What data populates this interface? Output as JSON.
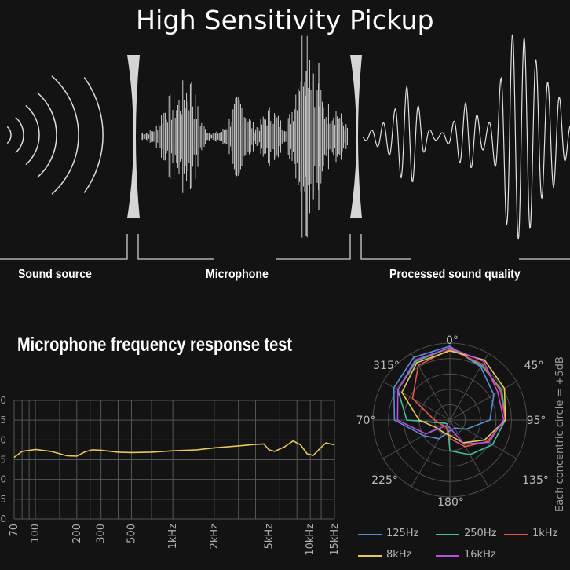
{
  "title": "High Sensitivity Pickup",
  "stages": {
    "sound_source": "Sound source",
    "microphone": "Microphone",
    "processed": "Processed sound quality"
  },
  "chart_heading": "Microphone frequency response test",
  "side_note": "Each concentric circle = +5dB",
  "colors": {
    "background": "#131313",
    "grid": "#555555",
    "response_line": "#e8c75a",
    "wave": "#e0e0e0"
  },
  "chart_data": [
    {
      "type": "line",
      "x_scale": "log",
      "x_ticks": [
        {
          "value": 70,
          "label": "70"
        },
        {
          "value": 100,
          "label": "100"
        },
        {
          "value": 200,
          "label": "200"
        },
        {
          "value": 300,
          "label": "300"
        },
        {
          "value": 500,
          "label": "500"
        },
        {
          "value": 1000,
          "label": "1kHz"
        },
        {
          "value": 2000,
          "label": "2kHz"
        },
        {
          "value": 5000,
          "label": "5kHz"
        },
        {
          "value": 10000,
          "label": "10kHz"
        },
        {
          "value": 15000,
          "label": "15kHz"
        }
      ],
      "y_tick_labels": [
        "0",
        "5",
        "0",
        "5",
        "0",
        "5",
        "0"
      ],
      "y_range": [
        0,
        6
      ],
      "series": [
        {
          "x": [
            70,
            80,
            100,
            130,
            170,
            200,
            230,
            260,
            300,
            400,
            500,
            700,
            1000,
            1500,
            2000,
            3000,
            4000,
            4600,
            5000,
            5500,
            6500,
            7500,
            8500,
            9500,
            10500,
            11500,
            13000,
            15000
          ],
          "y": [
            3.12,
            3.42,
            3.52,
            3.42,
            3.2,
            3.18,
            3.4,
            3.5,
            3.48,
            3.38,
            3.36,
            3.38,
            3.45,
            3.5,
            3.6,
            3.7,
            3.78,
            3.8,
            3.5,
            3.42,
            3.65,
            3.95,
            3.75,
            3.3,
            3.22,
            3.5,
            3.85,
            3.75
          ]
        }
      ]
    },
    {
      "type": "polar",
      "angle_labels": [
        "0°",
        "45°",
        "95°",
        "135°",
        "180°",
        "225°",
        "70°",
        "315°"
      ],
      "rings": 5,
      "series": [
        {
          "name": "125Hz",
          "color": "#5a8fd8",
          "r": [
            4.8,
            4.0,
            3.3,
            2.6,
            1.2,
            0.6,
            0.7,
            1.4,
            2.0,
            3.6,
            4.2,
            4.7,
            4.8
          ]
        },
        {
          "name": "250Hz",
          "color": "#3fbf9a",
          "r": [
            4.7,
            4.1,
            3.9,
            3.6,
            3.2,
            2.6,
            2.0,
            0.3,
            0.4,
            2.8,
            3.9,
            4.4,
            4.7
          ]
        },
        {
          "name": "1kHz",
          "color": "#e0574f",
          "r": [
            4.6,
            4.2,
            3.8,
            3.6,
            2.8,
            2.0,
            1.2,
            0.5,
            0.6,
            1.0,
            2.8,
            4.1,
            4.6
          ]
        },
        {
          "name": "8kHz",
          "color": "#e8c75a",
          "r": [
            4.5,
            4.5,
            4.1,
            3.6,
            2.6,
            1.7,
            1.0,
            0.9,
            1.0,
            2.0,
            3.6,
            4.3,
            4.5
          ]
        },
        {
          "name": "16kHz",
          "color": "#b84fe0",
          "r": [
            4.7,
            4.4,
            3.6,
            3.5,
            2.9,
            1.8,
            0.5,
            0.4,
            1.8,
            3.4,
            3.9,
            4.5,
            4.7
          ]
        }
      ]
    }
  ]
}
